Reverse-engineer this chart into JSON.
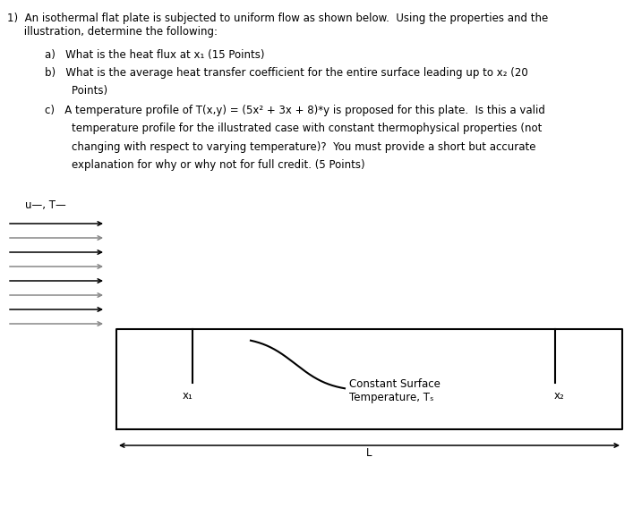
{
  "bg_color": "#ffffff",
  "text_color": "#000000",
  "font_size_main": 8.5,
  "font_size_labels": 8.5,
  "arrow_colors": [
    "#000000",
    "#888888",
    "#000000",
    "#888888",
    "#000000",
    "#888888",
    "#000000",
    "#888888"
  ],
  "label_u_T": "u—, T—",
  "label_x1": "x₁",
  "label_x2": "x₂",
  "label_L": "L",
  "label_const_temp": "Constant Surface\nTemperature, Tₛ",
  "line1": "1)  An isothermal flat plate is subjected to uniform flow as shown below.  Using the properties and the",
  "line2": "     illustration, determine the following:",
  "line_a": "a)   What is the heat flux at x₁ (15 Points)",
  "line_b": "b)   What is the average heat transfer coefficient for the entire surface leading up to x₂ (20",
  "line_b2": "        Points)",
  "line_c": "c)   A temperature profile of T(x,y) = (5x² + 3x + 8)*y is proposed for this plate.  Is this a valid",
  "line_c2": "        temperature profile for the illustrated case with constant thermophysical properties (not",
  "line_c3": "        changing with respect to varying temperature)?  You must provide a short but accurate",
  "line_c4": "        explanation for why or why not for full credit. (5 Points)"
}
